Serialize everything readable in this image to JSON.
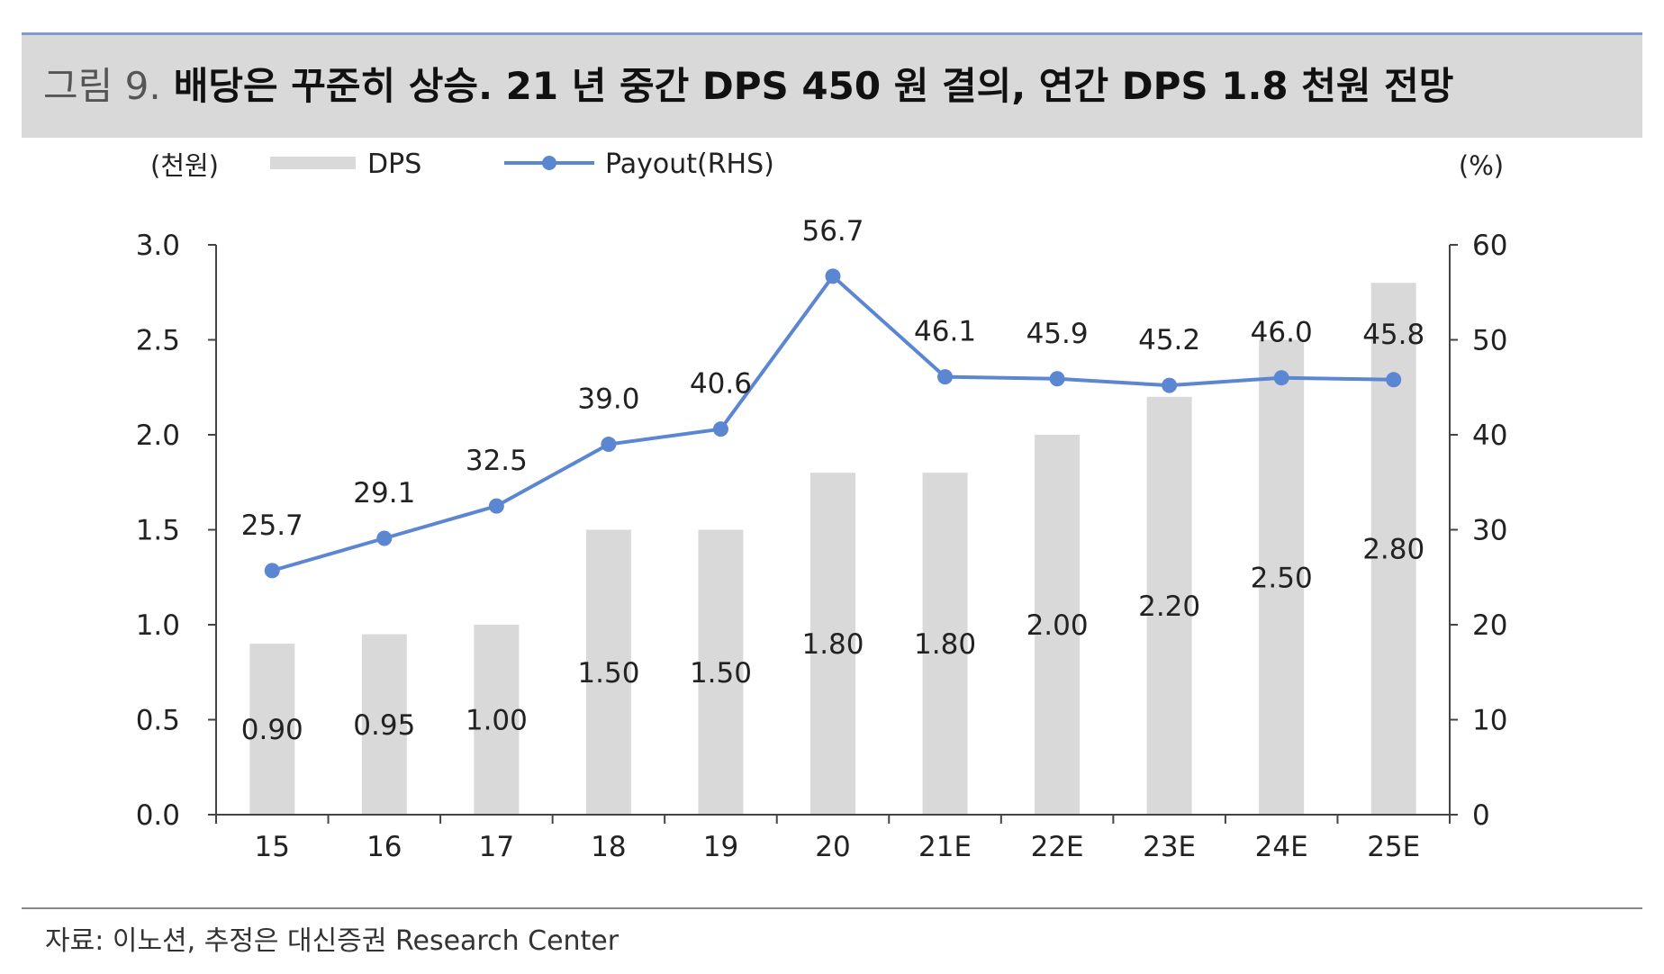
{
  "title": {
    "prefix": "그림 9.",
    "main": "배당은 꾸준히 상승. 21 년 중간 DPS 450 원 결의, 연간 DPS 1.8 천원 전망"
  },
  "source": "자료: 이노션, 추정은 대신증권 Research Center",
  "colors": {
    "bar": "#d9d9d9",
    "line": "#5b86d1",
    "axis": "#444444",
    "title_rule": "#7f9cc9"
  },
  "chart_data": {
    "type": "bar",
    "categories": [
      "15",
      "16",
      "17",
      "18",
      "19",
      "20",
      "21E",
      "22E",
      "23E",
      "24E",
      "25E"
    ],
    "y_left_unit": "(천원)",
    "y_right_unit": "(%)",
    "ylim_left": [
      0,
      3.0
    ],
    "ylim_right": [
      0,
      60
    ],
    "y_left_ticks": [
      "0.0",
      "0.5",
      "1.0",
      "1.5",
      "2.0",
      "2.5",
      "3.0"
    ],
    "y_right_ticks": [
      "0",
      "10",
      "20",
      "30",
      "40",
      "50",
      "60"
    ],
    "grid": false,
    "legend_position": "top",
    "series": [
      {
        "name": "DPS",
        "type": "bar",
        "axis": "left",
        "values": [
          0.9,
          0.95,
          1.0,
          1.5,
          1.5,
          1.8,
          1.8,
          2.0,
          2.2,
          2.5,
          2.8
        ],
        "labels": [
          "0.90",
          "0.95",
          "1.00",
          "1.50",
          "1.50",
          "1.80",
          "1.80",
          "2.00",
          "2.20",
          "2.50",
          "2.80"
        ]
      },
      {
        "name": "Payout(RHS)",
        "type": "line",
        "axis": "right",
        "values": [
          25.7,
          29.1,
          32.5,
          39.0,
          40.6,
          56.7,
          46.1,
          45.9,
          45.2,
          46.0,
          45.8
        ],
        "labels": [
          "25.7",
          "29.1",
          "32.5",
          "39.0",
          "40.6",
          "56.7",
          "46.1",
          "45.9",
          "45.2",
          "46.0",
          "45.8"
        ]
      }
    ]
  }
}
